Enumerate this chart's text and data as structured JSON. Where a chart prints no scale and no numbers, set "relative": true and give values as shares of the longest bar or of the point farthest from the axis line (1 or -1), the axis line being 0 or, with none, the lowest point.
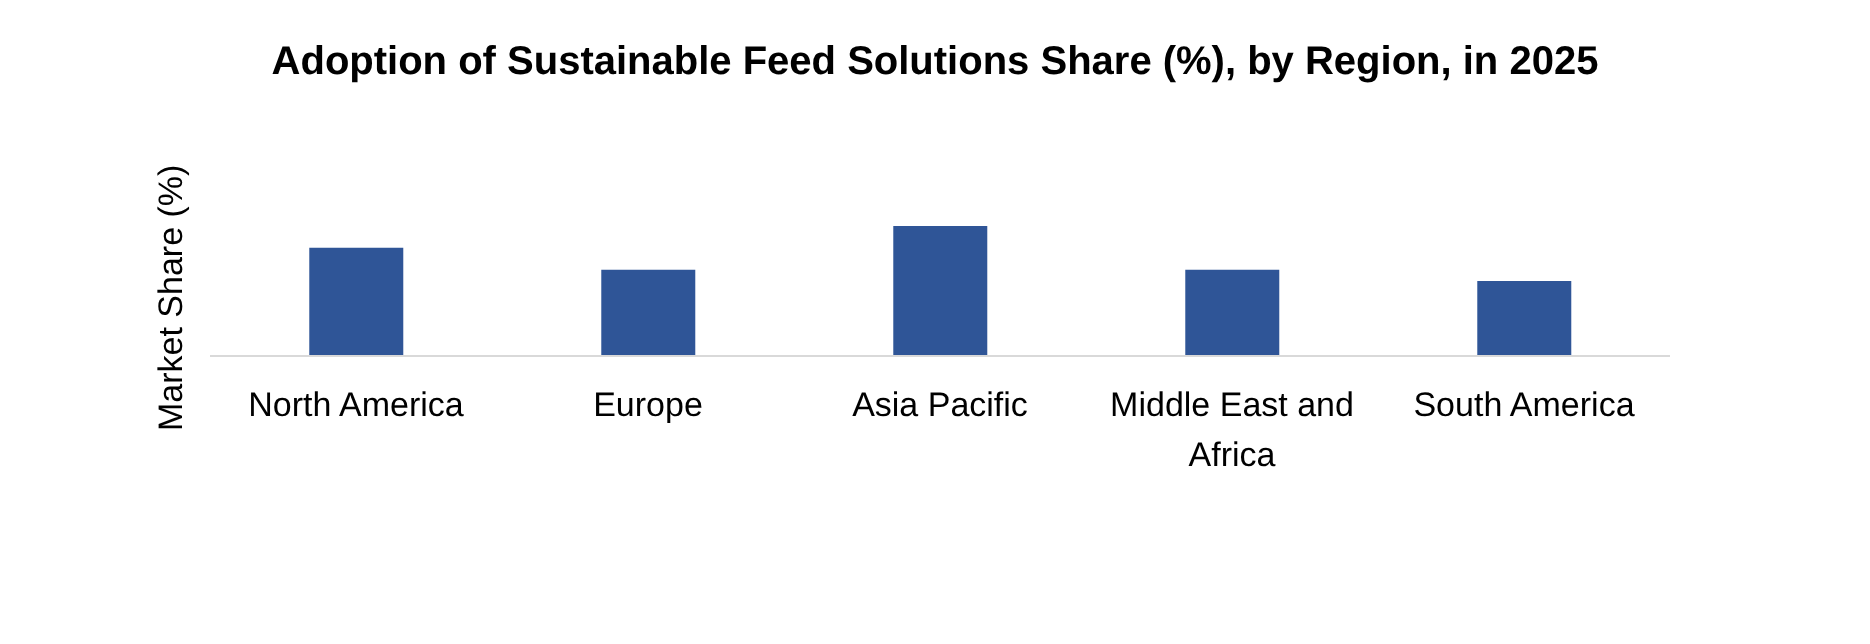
{
  "chart_data": {
    "type": "bar",
    "title": "Adoption of Sustainable Feed Solutions Share (%), by Region, in 2025",
    "ylabel": "Market Share (%)",
    "categories": [
      "North America",
      "Europe",
      "Asia Pacific",
      "Middle East and Africa",
      "South America"
    ],
    "values": [
      0.832,
      0.664,
      1,
      0.664,
      0.577
    ],
    "color": "#2f5597",
    "relative": true,
    "grid": false,
    "legend": false
  }
}
